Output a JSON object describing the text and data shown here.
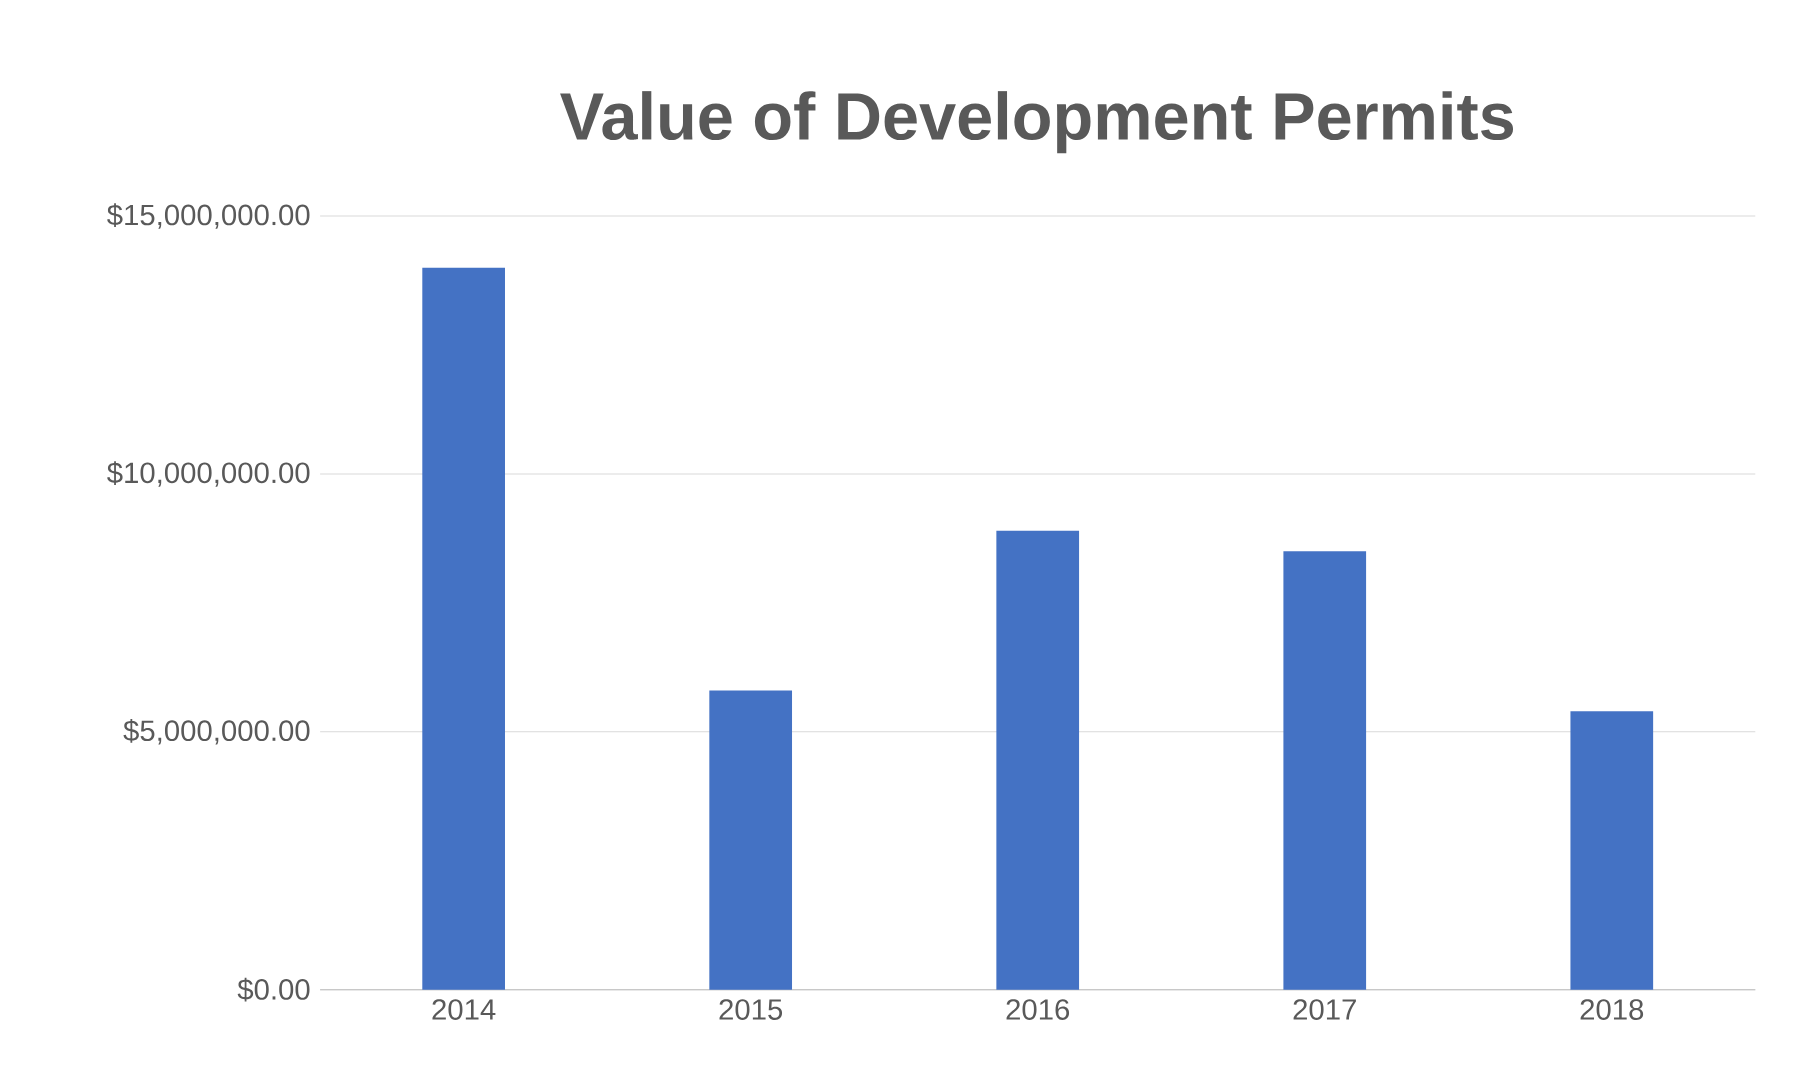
{
  "chart_data": {
    "type": "bar",
    "title": "Value of Development Permits",
    "categories": [
      "2014",
      "2015",
      "2016",
      "2017",
      "2018"
    ],
    "values": [
      14000000,
      5800000,
      8900000,
      8500000,
      5400000
    ],
    "color": "#4472c4",
    "ylim": [
      0,
      15000000
    ],
    "yticks": [
      {
        "value": 0,
        "label": "$0.00"
      },
      {
        "value": 5000000,
        "label": "$5,000,000.00"
      },
      {
        "value": 10000000,
        "label": "$10,000,000.00"
      },
      {
        "value": 15000000,
        "label": "$15,000,000.00"
      }
    ],
    "grid": "y"
  }
}
